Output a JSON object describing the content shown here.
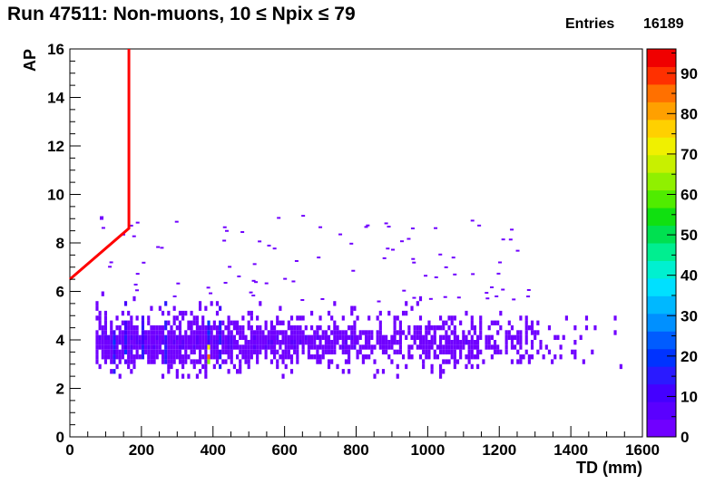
{
  "title": "Run 47511: Non-muons, 10 ≤ Npix ≤ 79",
  "stats": {
    "entries_label": "Entries",
    "entries_value": "16189"
  },
  "chart_data": {
    "type": "heatmap",
    "title": "Run 47511: Non-muons, 10 ≤ Npix ≤ 79",
    "xlabel": "TD (mm)",
    "ylabel": "AP",
    "xlim": [
      0,
      1600
    ],
    "ylim": [
      0,
      16
    ],
    "zlim": [
      0,
      96
    ],
    "x_ticks": [
      0,
      200,
      400,
      600,
      800,
      1000,
      1200,
      1400,
      1600
    ],
    "y_ticks": [
      0,
      2,
      4,
      6,
      8,
      10,
      12,
      14,
      16
    ],
    "z_ticks": [
      0,
      10,
      20,
      30,
      40,
      50,
      60,
      70,
      80,
      90
    ],
    "grid": false,
    "entries": 16189,
    "palette": [
      "#7000ff",
      "#5a00ff",
      "#4400ff",
      "#2a1aff",
      "#0033ff",
      "#005cff",
      "#0090ff",
      "#00b8ff",
      "#00e0ff",
      "#00f0d0",
      "#00ee90",
      "#00e050",
      "#10e010",
      "#50ec00",
      "#90f000",
      "#c8f000",
      "#f0f000",
      "#ffd000",
      "#ffa000",
      "#ff7000",
      "#ff3000",
      "#f00000"
    ],
    "cutline": {
      "color": "#ff0000",
      "points": [
        [
          0,
          6.5
        ],
        [
          165,
          8.6
        ],
        [
          165,
          16
        ]
      ]
    }
  }
}
